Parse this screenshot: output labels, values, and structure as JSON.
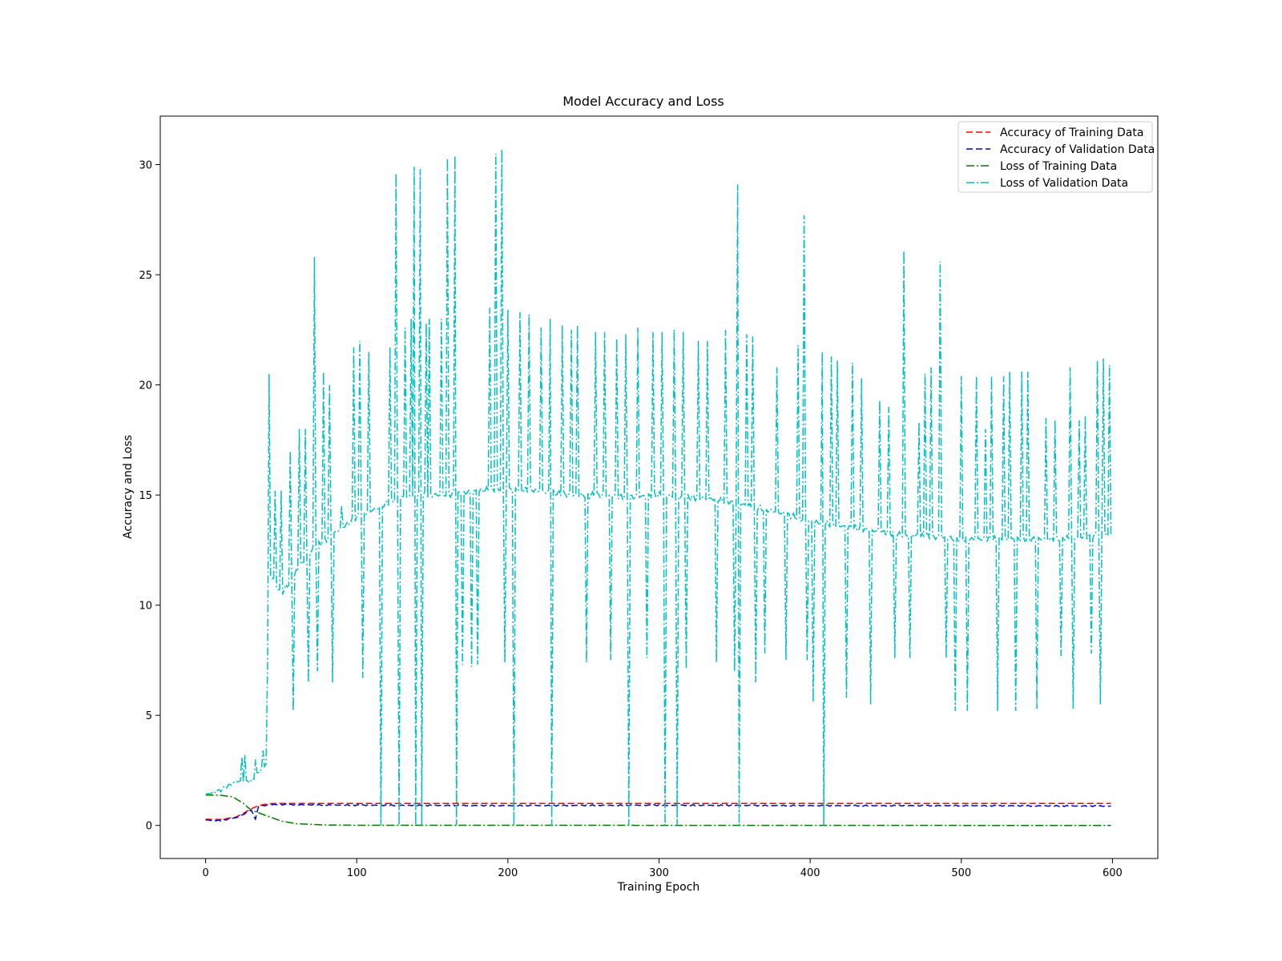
{
  "chart_data": {
    "type": "line",
    "title": "Model Accuracy and Loss",
    "xlabel": "Training Epoch",
    "ylabel": "Accuracy and Loss",
    "xlim": [
      -30,
      630
    ],
    "ylim": [
      -1.5,
      32.2
    ],
    "xticks": [
      0,
      100,
      200,
      300,
      400,
      500,
      600
    ],
    "yticks": [
      0,
      5,
      10,
      15,
      20,
      25,
      30
    ],
    "grid": false,
    "legend_position": "top-right",
    "epochs": 600,
    "series": [
      {
        "name": "Accuracy of Training Data",
        "color": "#ff0000",
        "dash": "dashed",
        "points": [
          [
            0,
            0.28
          ],
          [
            10,
            0.27
          ],
          [
            20,
            0.38
          ],
          [
            25,
            0.55
          ],
          [
            30,
            0.75
          ],
          [
            35,
            0.9
          ],
          [
            40,
            0.97
          ],
          [
            45,
            1.0
          ],
          [
            599,
            1.0
          ]
        ]
      },
      {
        "name": "Accuracy of Validation Data",
        "color": "#0000cc",
        "dash": "dashed",
        "points": [
          [
            0,
            0.25
          ],
          [
            10,
            0.22
          ],
          [
            20,
            0.35
          ],
          [
            25,
            0.5
          ],
          [
            30,
            0.7
          ],
          [
            33,
            0.3
          ],
          [
            35,
            0.85
          ],
          [
            40,
            0.92
          ],
          [
            45,
            0.95
          ],
          [
            100,
            0.92
          ],
          [
            200,
            0.9
          ],
          [
            300,
            0.92
          ],
          [
            400,
            0.9
          ],
          [
            500,
            0.9
          ],
          [
            599,
            0.88
          ]
        ]
      },
      {
        "name": "Loss of Training Data",
        "color": "#007700",
        "dash": "dashdot",
        "points": [
          [
            0,
            1.38
          ],
          [
            10,
            1.37
          ],
          [
            18,
            1.3
          ],
          [
            25,
            1.0
          ],
          [
            30,
            0.7
          ],
          [
            40,
            0.45
          ],
          [
            50,
            0.2
          ],
          [
            60,
            0.08
          ],
          [
            80,
            0.02
          ],
          [
            100,
            0.01
          ],
          [
            599,
            0.0
          ]
        ]
      },
      {
        "name": "Loss of Validation Data",
        "color": "#00bfbf",
        "dash": "dashdot",
        "baseline": [
          [
            0,
            1.4
          ],
          [
            10,
            1.6
          ],
          [
            20,
            2.0
          ],
          [
            30,
            2.0
          ],
          [
            40,
            2.8
          ],
          [
            42,
            11.5
          ],
          [
            50,
            10.5
          ],
          [
            60,
            11.5
          ],
          [
            70,
            12.5
          ],
          [
            80,
            13.0
          ],
          [
            90,
            13.5
          ],
          [
            100,
            14.0
          ],
          [
            110,
            14.3
          ],
          [
            125,
            14.8
          ],
          [
            140,
            15.0
          ],
          [
            160,
            15.0
          ],
          [
            180,
            15.2
          ],
          [
            200,
            15.3
          ],
          [
            220,
            15.2
          ],
          [
            240,
            15.0
          ],
          [
            260,
            15.0
          ],
          [
            280,
            14.9
          ],
          [
            300,
            15.0
          ],
          [
            320,
            14.9
          ],
          [
            340,
            14.8
          ],
          [
            360,
            14.5
          ],
          [
            380,
            14.2
          ],
          [
            400,
            13.8
          ],
          [
            420,
            13.6
          ],
          [
            440,
            13.4
          ],
          [
            460,
            13.2
          ],
          [
            480,
            13.1
          ],
          [
            500,
            13.0
          ],
          [
            520,
            13.0
          ],
          [
            540,
            13.0
          ],
          [
            560,
            13.0
          ],
          [
            580,
            13.1
          ],
          [
            599,
            13.2
          ]
        ],
        "spikes": [
          [
            24,
            3.1
          ],
          [
            26,
            3.2
          ],
          [
            33,
            3.0
          ],
          [
            38,
            3.4
          ],
          [
            42,
            20.5
          ],
          [
            46,
            15.2
          ],
          [
            50,
            15.2
          ],
          [
            56,
            17.0
          ],
          [
            58,
            5.2
          ],
          [
            62,
            18.0
          ],
          [
            66,
            18.0
          ],
          [
            68,
            6.5
          ],
          [
            72,
            25.8
          ],
          [
            74,
            7.0
          ],
          [
            78,
            20.6
          ],
          [
            82,
            20.0
          ],
          [
            84,
            6.5
          ],
          [
            90,
            14.5
          ],
          [
            98,
            21.7
          ],
          [
            102,
            22.0
          ],
          [
            104,
            6.7
          ],
          [
            108,
            21.5
          ],
          [
            116,
            0.0
          ],
          [
            122,
            21.7
          ],
          [
            126,
            29.6
          ],
          [
            128,
            0.0
          ],
          [
            132,
            22.6
          ],
          [
            136,
            23.0
          ],
          [
            138,
            29.9
          ],
          [
            139,
            0.0
          ],
          [
            142,
            29.8
          ],
          [
            143,
            0.0
          ],
          [
            146,
            22.8
          ],
          [
            148,
            23.0
          ],
          [
            156,
            23.0
          ],
          [
            160,
            30.3
          ],
          [
            165,
            30.4
          ],
          [
            166,
            0.0
          ],
          [
            170,
            7.3
          ],
          [
            176,
            7.2
          ],
          [
            180,
            7.3
          ],
          [
            188,
            23.5
          ],
          [
            192,
            30.5
          ],
          [
            196,
            30.7
          ],
          [
            198,
            7.4
          ],
          [
            200,
            23.4
          ],
          [
            204,
            0.0
          ],
          [
            208,
            23.3
          ],
          [
            214,
            23.2
          ],
          [
            222,
            22.6
          ],
          [
            228,
            23.0
          ],
          [
            229,
            0.0
          ],
          [
            236,
            22.7
          ],
          [
            242,
            22.5
          ],
          [
            246,
            22.7
          ],
          [
            252,
            7.4
          ],
          [
            258,
            22.4
          ],
          [
            264,
            22.4
          ],
          [
            268,
            7.5
          ],
          [
            272,
            22.1
          ],
          [
            278,
            22.3
          ],
          [
            280,
            0.0
          ],
          [
            286,
            22.6
          ],
          [
            292,
            7.6
          ],
          [
            296,
            22.4
          ],
          [
            302,
            22.4
          ],
          [
            304,
            0.0
          ],
          [
            310,
            22.5
          ],
          [
            312,
            0.0
          ],
          [
            316,
            22.4
          ],
          [
            318,
            7.1
          ],
          [
            326,
            22.0
          ],
          [
            332,
            22.0
          ],
          [
            338,
            7.4
          ],
          [
            344,
            22.5
          ],
          [
            350,
            7.0
          ],
          [
            352,
            29.1
          ],
          [
            353,
            0.0
          ],
          [
            358,
            22.3
          ],
          [
            362,
            22.2
          ],
          [
            364,
            6.5
          ],
          [
            370,
            7.8
          ],
          [
            378,
            20.8
          ],
          [
            384,
            7.5
          ],
          [
            392,
            21.8
          ],
          [
            396,
            27.7
          ],
          [
            398,
            7.5
          ],
          [
            402,
            5.6
          ],
          [
            408,
            21.5
          ],
          [
            409,
            0.0
          ],
          [
            414,
            21.3
          ],
          [
            418,
            21.1
          ],
          [
            424,
            5.8
          ],
          [
            428,
            21.0
          ],
          [
            434,
            20.3
          ],
          [
            440,
            5.5
          ],
          [
            446,
            19.3
          ],
          [
            452,
            19.0
          ],
          [
            456,
            7.6
          ],
          [
            462,
            26.1
          ],
          [
            466,
            7.6
          ],
          [
            472,
            18.3
          ],
          [
            476,
            20.5
          ],
          [
            480,
            20.8
          ],
          [
            486,
            25.6
          ],
          [
            490,
            7.6
          ],
          [
            496,
            5.2
          ],
          [
            500,
            20.4
          ],
          [
            504,
            5.2
          ],
          [
            510,
            20.4
          ],
          [
            516,
            18.0
          ],
          [
            520,
            20.4
          ],
          [
            524,
            5.2
          ],
          [
            528,
            20.4
          ],
          [
            532,
            20.6
          ],
          [
            536,
            5.2
          ],
          [
            540,
            20.6
          ],
          [
            544,
            20.6
          ],
          [
            550,
            5.3
          ],
          [
            556,
            18.5
          ],
          [
            562,
            18.4
          ],
          [
            566,
            7.7
          ],
          [
            572,
            20.8
          ],
          [
            574,
            5.3
          ],
          [
            578,
            18.4
          ],
          [
            582,
            18.6
          ],
          [
            586,
            7.8
          ],
          [
            590,
            21.1
          ],
          [
            592,
            5.5
          ],
          [
            594,
            21.2
          ],
          [
            598,
            20.9
          ]
        ]
      }
    ]
  }
}
